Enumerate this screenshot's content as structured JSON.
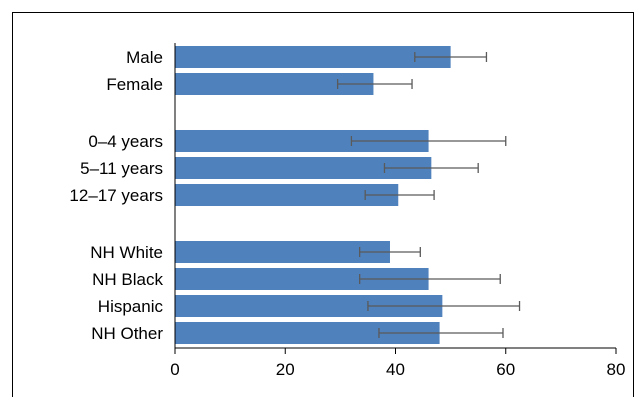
{
  "chart_data": {
    "type": "bar",
    "orientation": "horizontal",
    "groups": [
      {
        "items": [
          {
            "label": "Male",
            "value": 50,
            "err_low": 43.5,
            "err_high": 56.5
          },
          {
            "label": "Female",
            "value": 36,
            "err_low": 29.5,
            "err_high": 43
          }
        ]
      },
      {
        "items": [
          {
            "label": "0–4 years",
            "value": 46,
            "err_low": 32,
            "err_high": 60
          },
          {
            "label": "5–11 years",
            "value": 46.5,
            "err_low": 38,
            "err_high": 55
          },
          {
            "label": "12–17 years",
            "value": 40.5,
            "err_low": 34.5,
            "err_high": 47
          }
        ]
      },
      {
        "items": [
          {
            "label": "NH White",
            "value": 39,
            "err_low": 33.5,
            "err_high": 44.5
          },
          {
            "label": "NH Black",
            "value": 46,
            "err_low": 33.5,
            "err_high": 59
          },
          {
            "label": "Hispanic",
            "value": 48.5,
            "err_low": 35,
            "err_high": 62.5
          },
          {
            "label": "NH Other",
            "value": 48,
            "err_low": 37,
            "err_high": 59.5
          }
        ]
      }
    ],
    "xlim": [
      0,
      80
    ],
    "xticks": [
      "0",
      "20",
      "40",
      "60",
      "80"
    ],
    "grid": false,
    "bar_color": "#4f81bd",
    "error_bar_color": "#5a5a5a"
  }
}
